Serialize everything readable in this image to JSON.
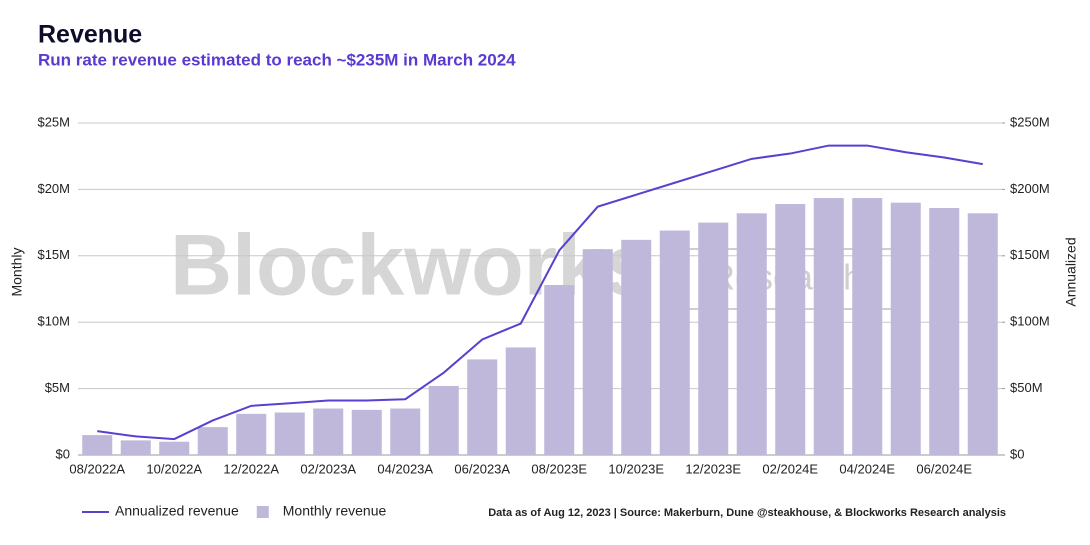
{
  "chart_data": {
    "type": "bar+line",
    "title": "Revenue",
    "subtitle": "Run rate revenue estimated to reach ~$235M in March 2024",
    "y_label": "Monthly",
    "y2_label": "Annualized",
    "watermark": "Blockworks",
    "watermark_badge": "Research",
    "source": "Data as of Aug 12, 2023 | Source: Makerburn, Dune @steakhouse, & Blockworks Research analysis",
    "categories": [
      "08/2022A",
      null,
      "10/2022A",
      null,
      "12/2022A",
      null,
      "02/2023A",
      null,
      "04/2023A",
      null,
      "06/2023A",
      null,
      "08/2023E",
      null,
      "10/2023E",
      null,
      "12/2023E",
      null,
      "02/2024E",
      null,
      "04/2024E",
      null,
      "06/2024E",
      null
    ],
    "series": [
      {
        "name": "Annualized revenue",
        "type": "line",
        "axis": "y2",
        "color": "#5a3fd0",
        "values": [
          18,
          14,
          12,
          26,
          37,
          39,
          41,
          41,
          42,
          62,
          87,
          99,
          154,
          187,
          196,
          205,
          214,
          223,
          227,
          233,
          233,
          228,
          224,
          219
        ]
      },
      {
        "name": "Monthly revenue",
        "type": "bar",
        "axis": "y",
        "color": "#c0b8da",
        "values": [
          1.5,
          1.1,
          1.0,
          2.1,
          3.1,
          3.2,
          3.5,
          3.4,
          3.5,
          5.2,
          7.2,
          8.1,
          12.8,
          15.5,
          16.2,
          16.9,
          17.5,
          18.2,
          18.9,
          19.35,
          19.35,
          19.0,
          18.6,
          18.2
        ]
      }
    ],
    "ylim": [
      0,
      25
    ],
    "yticks": [
      {
        "value": 0,
        "label": "$0"
      },
      {
        "value": 5,
        "label": "$5M"
      },
      {
        "value": 10,
        "label": "$10M"
      },
      {
        "value": 15,
        "label": "$15M"
      },
      {
        "value": 20,
        "label": "$20M"
      },
      {
        "value": 25,
        "label": "$25M"
      }
    ],
    "y2lim": [
      0,
      250
    ],
    "y2ticks": [
      {
        "value": 0,
        "label": "$0"
      },
      {
        "value": 50,
        "label": "$50M"
      },
      {
        "value": 100,
        "label": "$100M"
      },
      {
        "value": 150,
        "label": "$150M"
      },
      {
        "value": 200,
        "label": "$200M"
      },
      {
        "value": 250,
        "label": "$250M"
      }
    ],
    "grid": true
  }
}
